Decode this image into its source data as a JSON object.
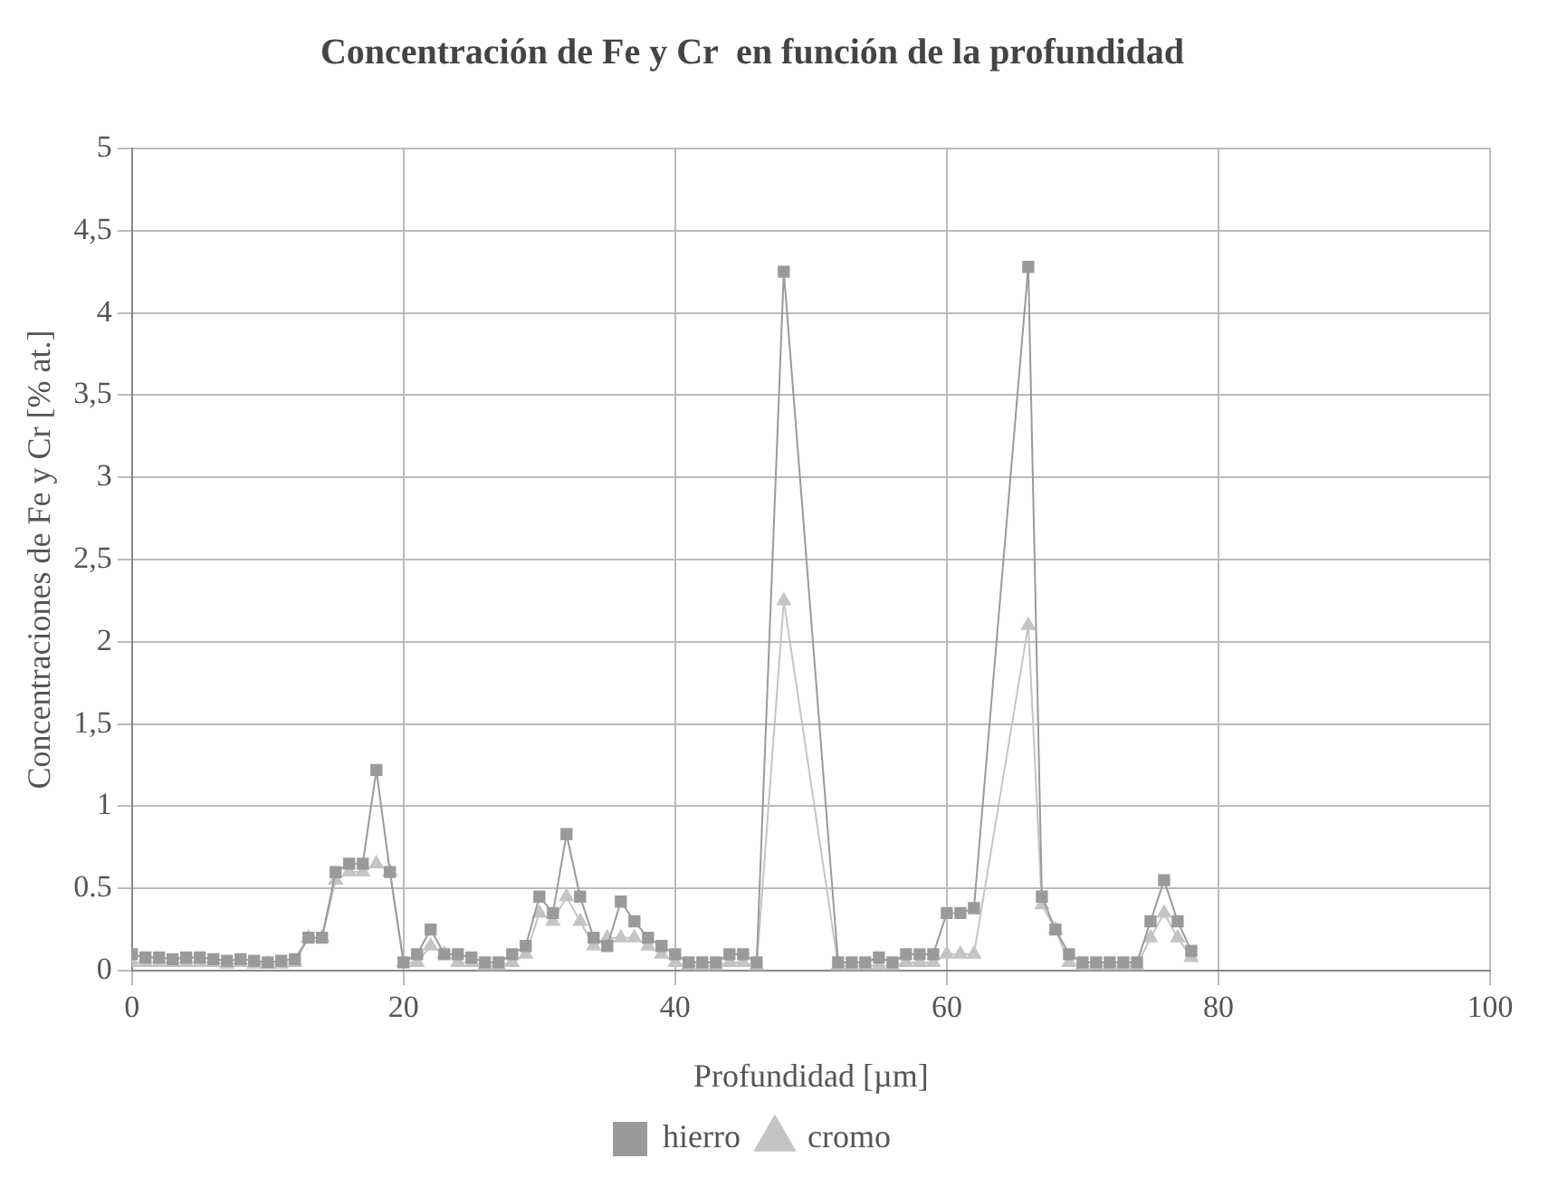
{
  "chart_data": {
    "type": "line",
    "title": "Concentración de Fe y Cr  en función de la profundidad",
    "xlabel": "Profundidad [µm]",
    "ylabel": "Concentraciones de Fe y Cr [% at.]",
    "xlim": [
      0,
      100
    ],
    "xticks": [
      0,
      20,
      40,
      60,
      80,
      100
    ],
    "ylim": [
      0,
      5
    ],
    "yticks": [
      0,
      {
        "value": 0.5,
        "label": "0.5"
      },
      1,
      {
        "value": 1.5,
        "label": "1,5"
      },
      2,
      {
        "value": 2.5,
        "label": "2,5"
      },
      3,
      {
        "value": 3.5,
        "label": "3,5"
      },
      4,
      {
        "value": 4.5,
        "label": "4,5"
      },
      5
    ],
    "grid": true,
    "legend": "bottom",
    "series": [
      {
        "name": "hierro",
        "color": "#9a9a9a",
        "marker": "square",
        "x": [
          0,
          1,
          2,
          3,
          4,
          5,
          6,
          7,
          8,
          9,
          10,
          11,
          12,
          13,
          14,
          15,
          16,
          17,
          18,
          19,
          20,
          21,
          22,
          23,
          24,
          25,
          26,
          27,
          28,
          29,
          30,
          31,
          32,
          33,
          34,
          35,
          36,
          37,
          38,
          39,
          40,
          41,
          42,
          43,
          44,
          45,
          46,
          48,
          52,
          53,
          54,
          55,
          56,
          57,
          58,
          59,
          60,
          61,
          62,
          66,
          67,
          68,
          69,
          70,
          71,
          72,
          73,
          74,
          75,
          76,
          77,
          78
        ],
        "values": [
          0.1,
          0.08,
          0.08,
          0.07,
          0.08,
          0.08,
          0.07,
          0.06,
          0.07,
          0.06,
          0.05,
          0.06,
          0.07,
          0.2,
          0.2,
          0.6,
          0.65,
          0.65,
          1.22,
          0.6,
          0.05,
          0.1,
          0.25,
          0.1,
          0.1,
          0.08,
          0.05,
          0.05,
          0.1,
          0.15,
          0.45,
          0.35,
          0.83,
          0.45,
          0.2,
          0.15,
          0.42,
          0.3,
          0.2,
          0.15,
          0.1,
          0.05,
          0.05,
          0.05,
          0.1,
          0.1,
          0.05,
          4.25,
          0.05,
          0.05,
          0.05,
          0.08,
          0.05,
          0.1,
          0.1,
          0.1,
          0.35,
          0.35,
          0.38,
          4.28,
          0.45,
          0.25,
          0.1,
          0.05,
          0.05,
          0.05,
          0.05,
          0.05,
          0.3,
          0.55,
          0.3,
          0.12
        ]
      },
      {
        "name": "cromo",
        "color": "#c4c4c4",
        "marker": "triangle",
        "x": [
          0,
          1,
          2,
          3,
          4,
          5,
          6,
          7,
          8,
          9,
          10,
          11,
          12,
          13,
          14,
          15,
          16,
          17,
          18,
          19,
          20,
          21,
          22,
          23,
          24,
          25,
          26,
          27,
          28,
          29,
          30,
          31,
          32,
          33,
          34,
          35,
          36,
          37,
          38,
          39,
          40,
          41,
          42,
          43,
          44,
          45,
          46,
          48,
          52,
          53,
          54,
          55,
          56,
          57,
          58,
          59,
          60,
          61,
          62,
          66,
          67,
          68,
          69,
          70,
          71,
          72,
          73,
          74,
          75,
          76,
          77,
          78
        ],
        "values": [
          0.05,
          0.05,
          0.05,
          0.05,
          0.05,
          0.05,
          0.05,
          0.04,
          0.05,
          0.04,
          0.04,
          0.04,
          0.05,
          0.2,
          0.2,
          0.55,
          0.6,
          0.6,
          0.65,
          0.6,
          0.05,
          0.05,
          0.15,
          0.1,
          0.05,
          0.05,
          0.03,
          0.03,
          0.05,
          0.1,
          0.35,
          0.3,
          0.45,
          0.3,
          0.15,
          0.2,
          0.2,
          0.2,
          0.15,
          0.1,
          0.05,
          0.03,
          0.03,
          0.03,
          0.05,
          0.05,
          0.03,
          2.25,
          0.03,
          0.03,
          0.03,
          0.03,
          0.03,
          0.05,
          0.05,
          0.05,
          0.1,
          0.1,
          0.1,
          2.1,
          0.4,
          0.25,
          0.05,
          0.03,
          0.03,
          0.03,
          0.03,
          0.03,
          0.2,
          0.35,
          0.2,
          0.08
        ]
      }
    ]
  }
}
